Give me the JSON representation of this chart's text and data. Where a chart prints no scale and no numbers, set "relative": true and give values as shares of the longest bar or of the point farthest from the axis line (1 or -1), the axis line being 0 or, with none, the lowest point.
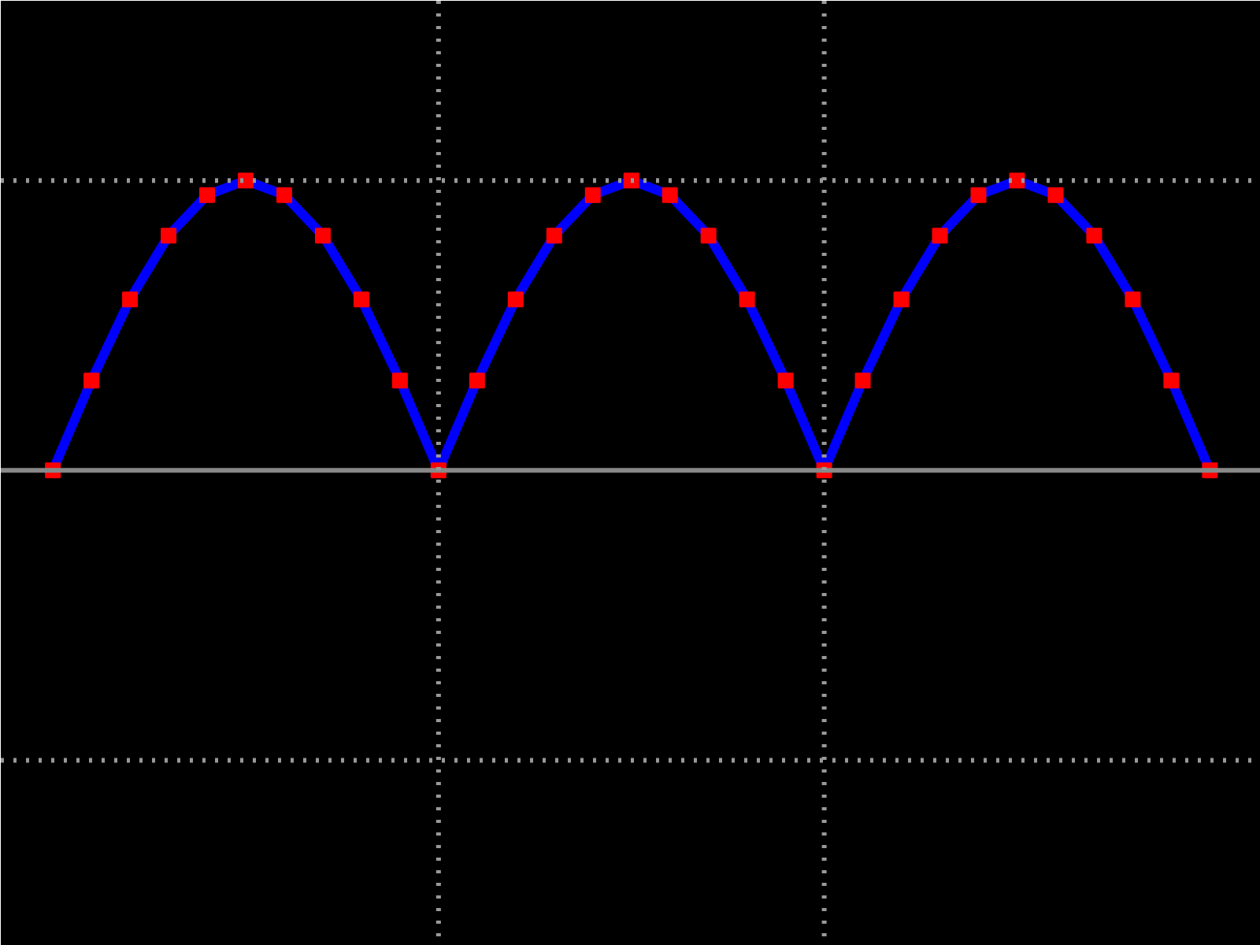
{
  "chart_data": {
    "type": "line",
    "relative": true,
    "line_style": "solid",
    "marker": "square",
    "categories": [
      null,
      null,
      null,
      null,
      null,
      null,
      null,
      null,
      null,
      null,
      null,
      null,
      null,
      null,
      null,
      null,
      null,
      null,
      null,
      null,
      null,
      null,
      null,
      null,
      null,
      null,
      null,
      null,
      null,
      null,
      null
    ],
    "series": [
      {
        "color": "#0000ff",
        "values": [
          0,
          0.31,
          0.59,
          0.81,
          0.95,
          1,
          0.95,
          0.81,
          0.59,
          0.31,
          0,
          0.31,
          0.59,
          0.81,
          0.95,
          1,
          0.95,
          0.81,
          0.59,
          0.31,
          0,
          0.31,
          0.59,
          0.81,
          0.95,
          1,
          0.95,
          0.81,
          0.59,
          0.31,
          0
        ],
        "colors": [
          "#ff0000",
          "#ff0000",
          "#ff0000",
          "#ff0000",
          "#ff0000",
          "#ff0000",
          "#ff0000",
          "#ff0000",
          "#ff0000",
          "#ff0000",
          "#ff0000",
          "#ff0000",
          "#ff0000",
          "#ff0000",
          "#ff0000",
          "#ff0000",
          "#ff0000",
          "#ff0000",
          "#ff0000",
          "#ff0000",
          "#ff0000",
          "#ff0000",
          "#ff0000",
          "#ff0000",
          "#ff0000",
          "#ff0000",
          "#ff0000",
          "#ff0000",
          "#ff0000",
          "#ff0000",
          "#ff0000"
        ]
      }
    ],
    "ref_lines": [
      {
        "axis": "y",
        "value": 0,
        "color": "#888888",
        "line_style": "solid"
      }
    ]
  }
}
